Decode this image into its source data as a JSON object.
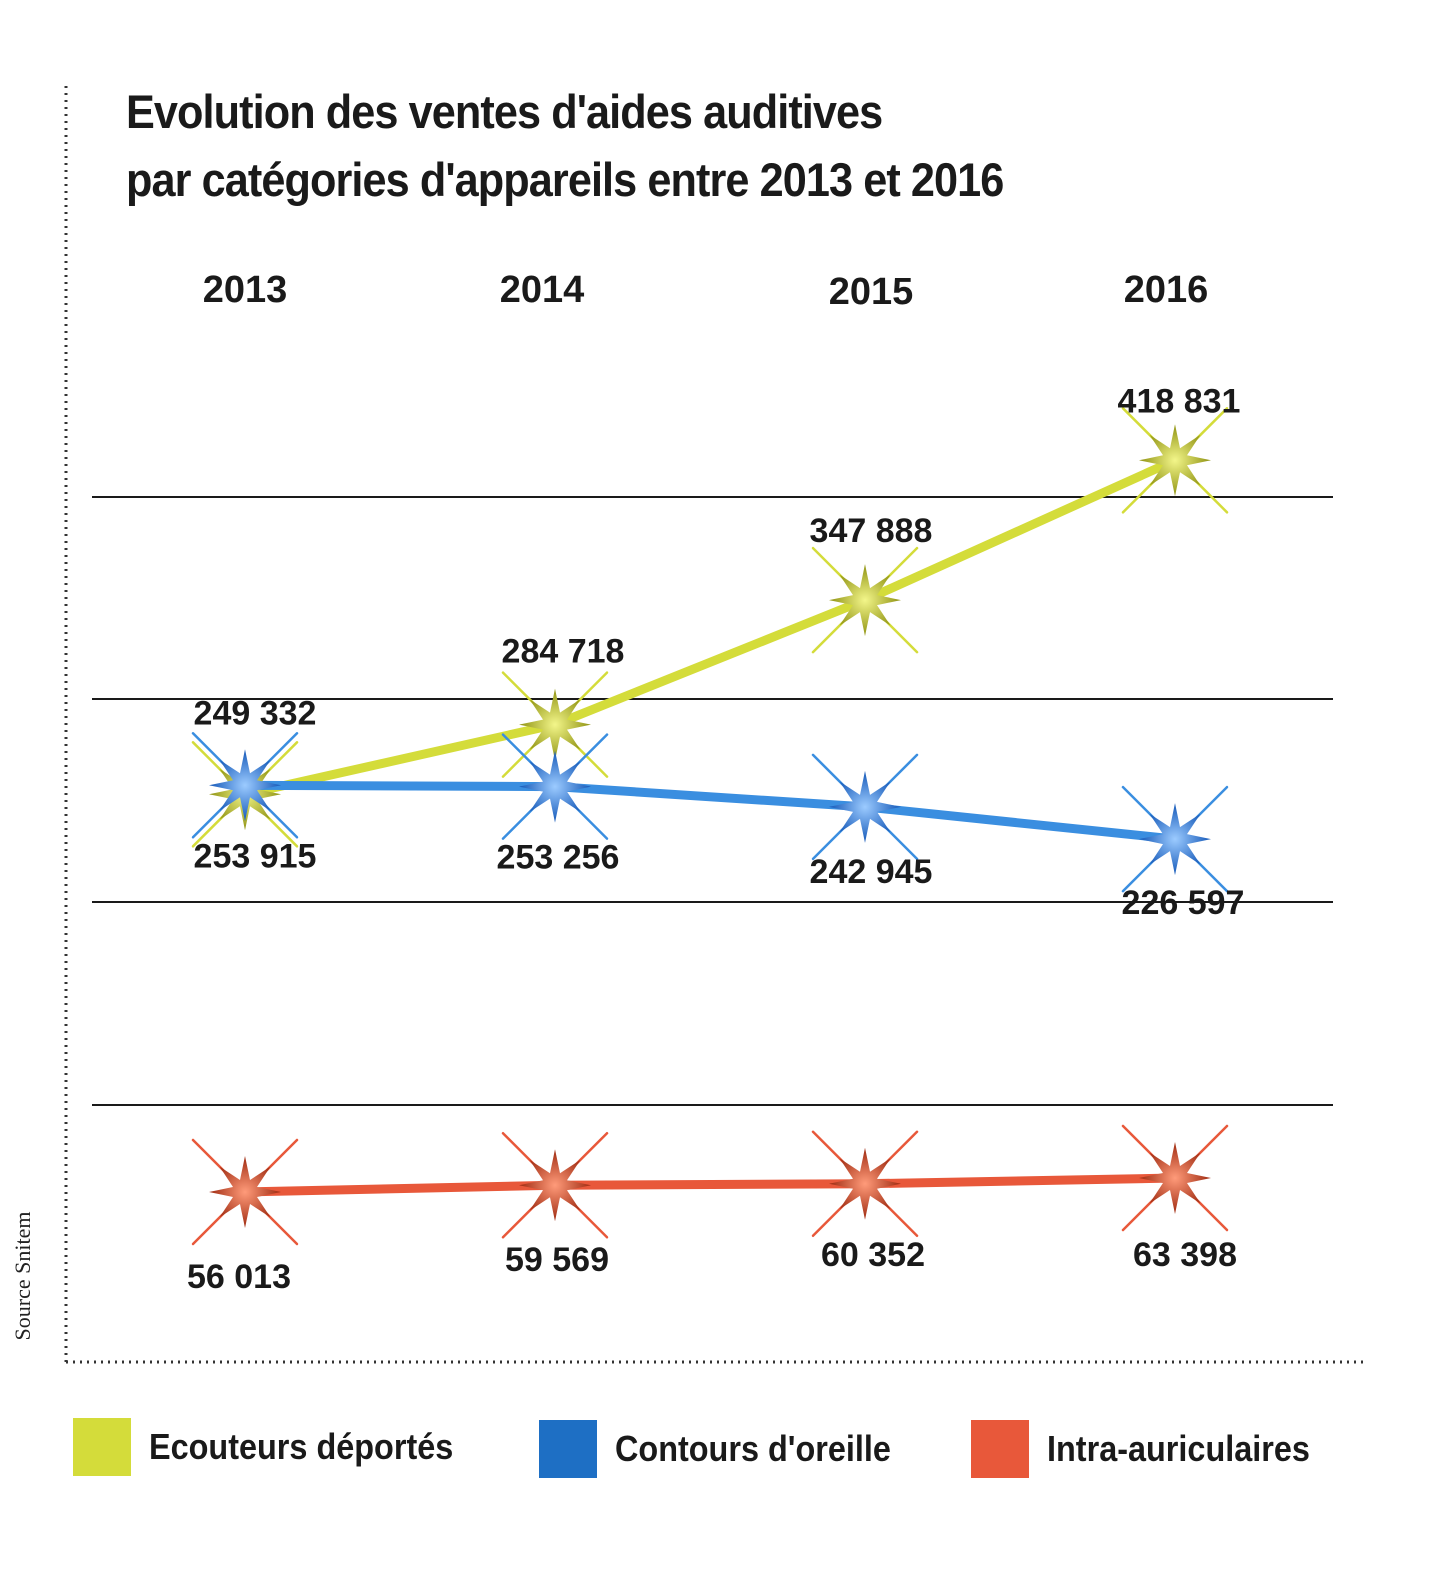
{
  "title": {
    "line1": "Evolution des ventes d'aides auditives",
    "line2": "par catégories d'appareils entre 2013 et 2016"
  },
  "source": "Source Snitem",
  "chart_data": {
    "type": "line",
    "title": "Evolution des ventes d'aides auditives par catégories d'appareils entre 2013 et 2016",
    "categories": [
      "2013",
      "2014",
      "2015",
      "2016"
    ],
    "x_axis_position": "top",
    "grid": "horizontal",
    "marker": "star",
    "legend": "bottom",
    "series": [
      {
        "name": "Ecouteurs déportés",
        "color": "#d4dc3a",
        "values": [
          249332,
          284718,
          347888,
          418831
        ],
        "labels": [
          "249 332",
          "284 718",
          "347 888",
          "418 831"
        ]
      },
      {
        "name": "Contours d'oreille",
        "color": "#3a8ee0",
        "values": [
          253915,
          253256,
          242945,
          226597
        ],
        "labels": [
          "253 915",
          "253 256",
          "242 945",
          "226 597"
        ]
      },
      {
        "name": "Intra-auriculaires",
        "color": "#e8583a",
        "values": [
          56013,
          59569,
          60352,
          63398
        ],
        "labels": [
          "56 013",
          "59 569",
          "60 352",
          "63 398"
        ]
      }
    ]
  },
  "legend": [
    {
      "label": "Ecouteurs déportés",
      "color": "#d4dc3a"
    },
    {
      "label": "Contours d'oreille",
      "color": "#1e6fc4"
    },
    {
      "label": "Intra-auriculaires",
      "color": "#e8583a"
    }
  ]
}
